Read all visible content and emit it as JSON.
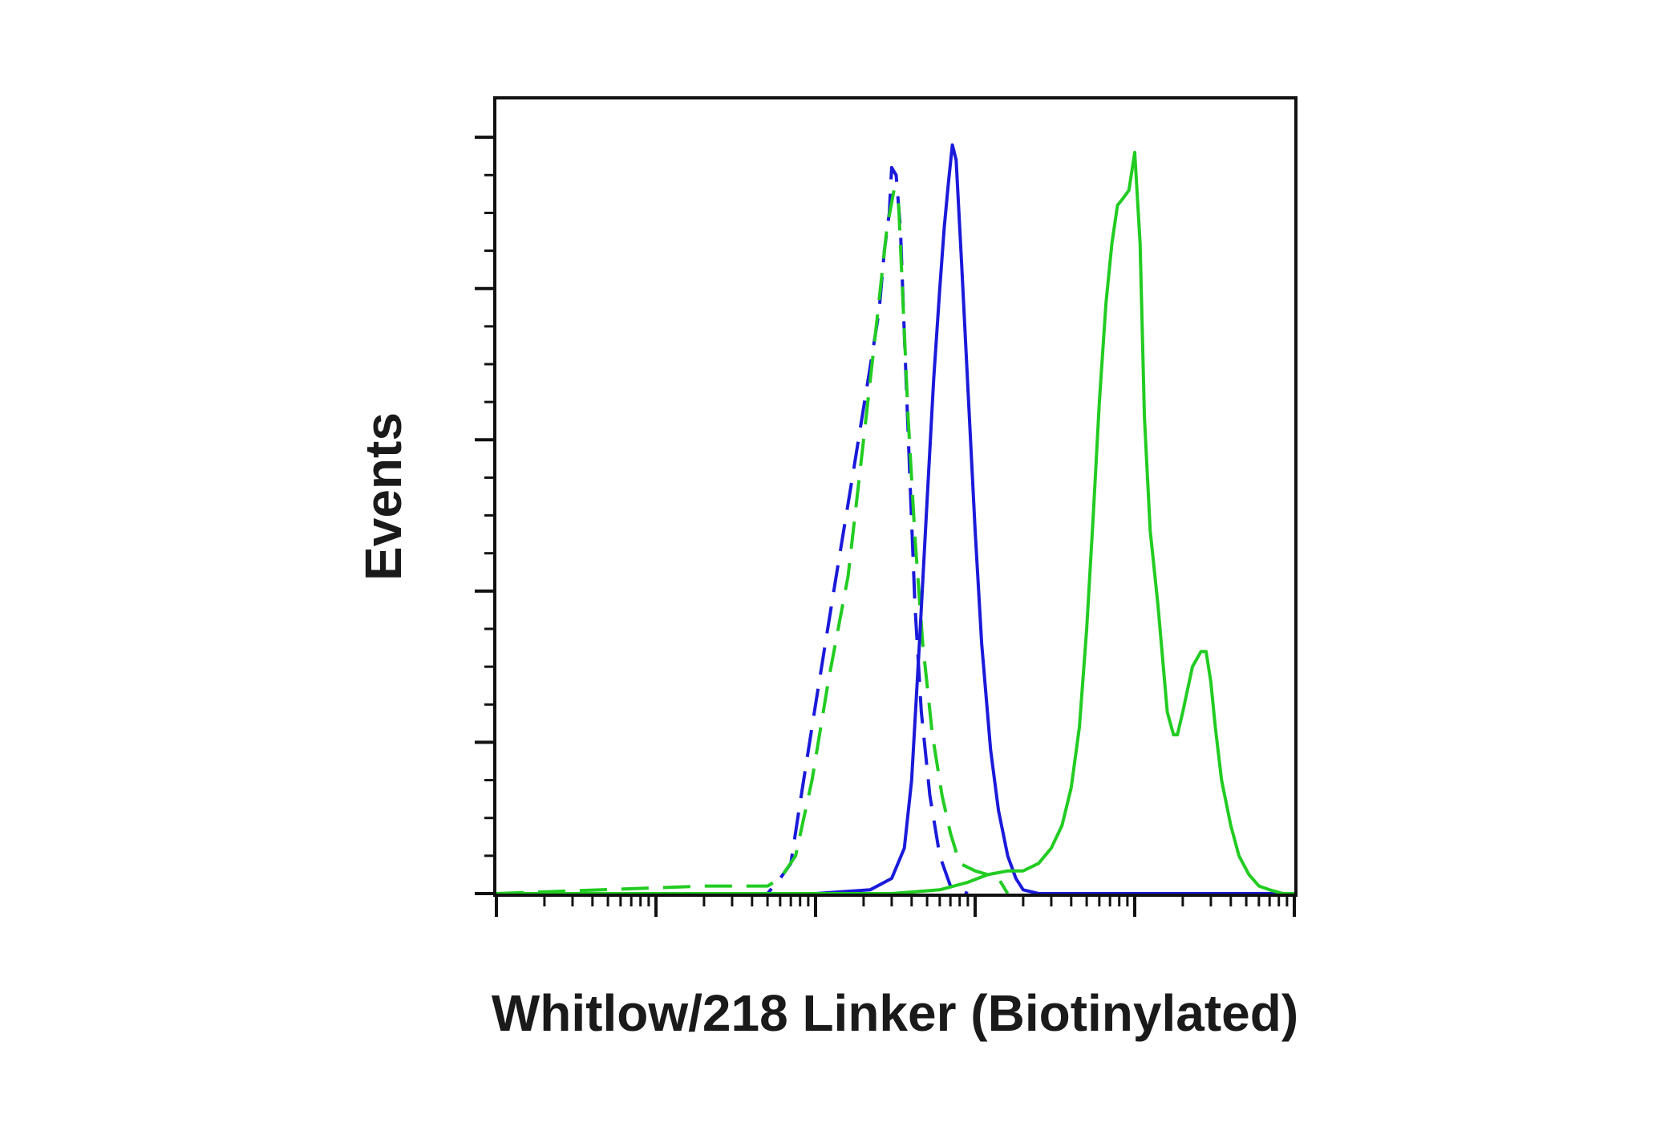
{
  "chart_data": {
    "type": "line",
    "title": "",
    "xlabel": "Whitlow/218 Linker (Biotinylated)",
    "ylabel": "Events",
    "x_scale": "log",
    "xlim": [
      1,
      100000
    ],
    "ylim": [
      0,
      105
    ],
    "grid": false,
    "legend": "none",
    "x_tick_labels": [],
    "y_tick_labels": [],
    "series": [
      {
        "color": "#1a1adb",
        "dashed": true,
        "x": [
          1,
          40,
          50,
          60,
          70,
          80,
          100,
          130,
          170,
          210,
          250,
          270,
          290,
          300,
          320,
          340,
          360,
          390,
          420,
          460,
          520,
          600,
          700,
          900
        ],
        "y": [
          0,
          0,
          0,
          2,
          4,
          12,
          25,
          40,
          55,
          67,
          77,
          85,
          90,
          96,
          95,
          88,
          74,
          55,
          38,
          24,
          13,
          5,
          1,
          0
        ]
      },
      {
        "color": "#22cc22",
        "dashed": true,
        "x": [
          1,
          20,
          40,
          50,
          60,
          75,
          95,
          120,
          160,
          200,
          240,
          280,
          310,
          330,
          350,
          380,
          420,
          470,
          540,
          620,
          700,
          800,
          1000,
          1200,
          1400,
          1600
        ],
        "y": [
          0,
          1,
          1,
          1,
          2,
          5,
          15,
          28,
          42,
          60,
          75,
          88,
          93,
          92,
          80,
          63,
          47,
          33,
          21,
          13,
          8,
          4,
          3,
          2.5,
          2,
          0
        ]
      },
      {
        "color": "#1a1adb",
        "dashed": false,
        "x": [
          1,
          100,
          220,
          300,
          360,
          400,
          450,
          500,
          550,
          600,
          640,
          680,
          720,
          760,
          820,
          900,
          1000,
          1100,
          1250,
          1400,
          1600,
          1800,
          2000,
          2500,
          5000,
          20000,
          100000
        ],
        "y": [
          0,
          0,
          0.5,
          2,
          6,
          15,
          34,
          52,
          68,
          80,
          88,
          94,
          99,
          97,
          84,
          67,
          48,
          33,
          19,
          11,
          5,
          2,
          0.5,
          0,
          0,
          0,
          0
        ]
      },
      {
        "color": "#22cc22",
        "dashed": false,
        "x": [
          1,
          300,
          600,
          900,
          1200,
          1600,
          2000,
          2500,
          3000,
          3500,
          4000,
          4500,
          5000,
          5500,
          6000,
          6600,
          7200,
          7800,
          8500,
          9200,
          10000,
          10800,
          11500,
          12500,
          14000,
          16000,
          17500,
          18500,
          20000,
          23000,
          26000,
          28000,
          30000,
          32000,
          35000,
          40000,
          45000,
          52000,
          60000,
          70000,
          85000,
          100000
        ],
        "y": [
          0,
          0,
          0.5,
          1.5,
          2.5,
          3,
          3,
          4,
          6,
          9,
          14,
          22,
          35,
          50,
          65,
          78,
          86,
          91,
          92,
          93,
          98,
          86,
          63,
          48,
          38,
          24,
          21,
          21,
          24,
          30,
          32,
          32,
          28,
          22,
          15,
          9,
          5,
          2.5,
          1,
          0.5,
          0,
          0
        ]
      }
    ]
  }
}
